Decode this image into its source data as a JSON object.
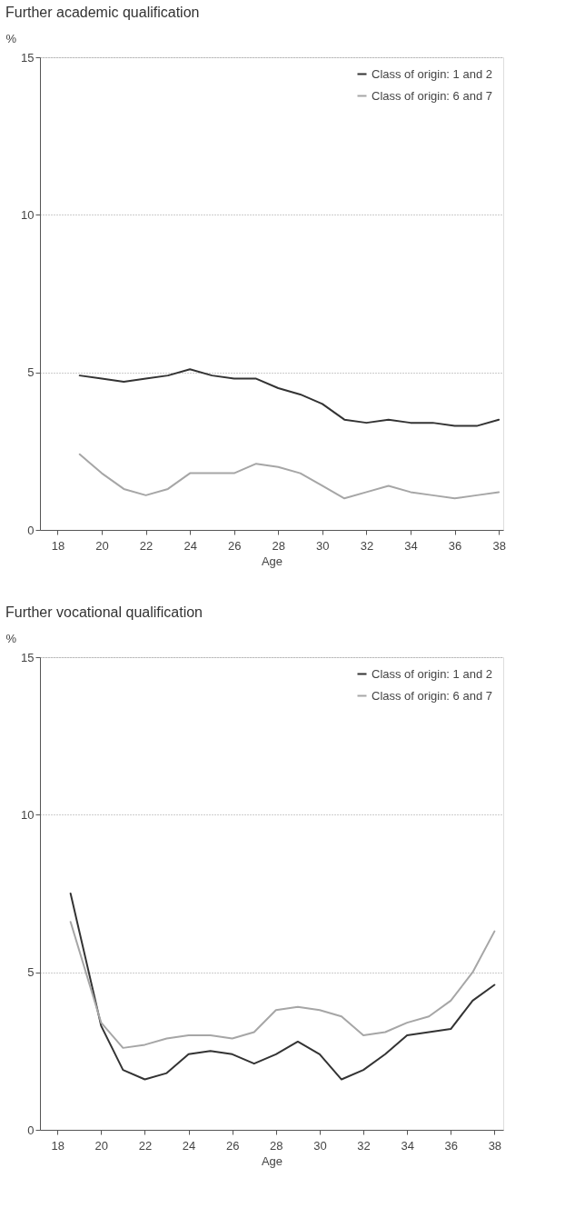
{
  "chart_data": [
    {
      "type": "line",
      "title": "Further academic qualification",
      "xlabel": "Age",
      "ylabel": "%",
      "xlim": [
        17.2,
        38.2
      ],
      "ylim": [
        0,
        15
      ],
      "xticks": [
        18,
        20,
        22,
        24,
        26,
        28,
        30,
        32,
        34,
        36,
        38
      ],
      "yticks": [
        0,
        5,
        10,
        15
      ],
      "grid": "y",
      "legend": "top right",
      "marker": "none",
      "line_style": "solid",
      "series": [
        {
          "name": "Class of origin: 1 and 2",
          "color": "#333333",
          "x": [
            19,
            20,
            21,
            22,
            23,
            24,
            25,
            26,
            27,
            28,
            29,
            30,
            31,
            32,
            33,
            34,
            35,
            36,
            37,
            38
          ],
          "values": [
            4.9,
            4.8,
            4.7,
            4.8,
            4.9,
            5.1,
            4.9,
            4.8,
            4.8,
            4.5,
            4.3,
            4.0,
            3.5,
            3.4,
            3.5,
            3.4,
            3.4,
            3.3,
            3.3,
            3.5
          ]
        },
        {
          "name": "Class of origin: 6 and 7",
          "color": "#a6a6a6",
          "x": [
            19,
            20,
            21,
            22,
            23,
            24,
            25,
            26,
            27,
            28,
            29,
            30,
            31,
            32,
            33,
            34,
            35,
            36,
            37,
            38
          ],
          "values": [
            2.4,
            1.8,
            1.3,
            1.1,
            1.3,
            1.8,
            1.8,
            1.8,
            2.1,
            2.0,
            1.8,
            1.4,
            1.0,
            1.2,
            1.4,
            1.2,
            1.1,
            1.0,
            1.1,
            1.2
          ]
        }
      ]
    },
    {
      "type": "line",
      "title": "Further vocational qualification",
      "xlabel": "Age",
      "ylabel": "%",
      "xlim": [
        17.2,
        38.4
      ],
      "ylim": [
        0,
        15
      ],
      "xticks": [
        18,
        20,
        22,
        24,
        26,
        28,
        30,
        32,
        34,
        36,
        38
      ],
      "yticks": [
        0,
        5,
        10,
        15
      ],
      "grid": "y",
      "legend": "top right",
      "marker": "none",
      "line_style": "solid",
      "series": [
        {
          "name": "Class of origin: 1 and 2",
          "color": "#333333",
          "x": [
            18.6,
            20,
            21,
            22,
            23,
            24,
            25,
            26,
            27,
            28,
            29,
            30,
            31,
            32,
            33,
            34,
            35,
            36,
            37,
            38
          ],
          "values": [
            7.5,
            3.3,
            1.9,
            1.6,
            1.8,
            2.4,
            2.5,
            2.4,
            2.1,
            2.4,
            2.8,
            2.4,
            1.6,
            1.9,
            2.4,
            3.0,
            3.1,
            3.2,
            4.1,
            4.6
          ]
        },
        {
          "name": "Class of origin: 6 and 7",
          "color": "#a6a6a6",
          "x": [
            18.6,
            20,
            21,
            22,
            23,
            24,
            25,
            26,
            27,
            28,
            29,
            30,
            31,
            32,
            33,
            34,
            35,
            36,
            37,
            38
          ],
          "values": [
            6.6,
            3.4,
            2.6,
            2.7,
            2.9,
            3.0,
            3.0,
            2.9,
            3.1,
            3.8,
            3.9,
            3.8,
            3.6,
            3.0,
            3.1,
            3.4,
            3.6,
            4.1,
            5.0,
            6.3
          ]
        }
      ]
    }
  ]
}
